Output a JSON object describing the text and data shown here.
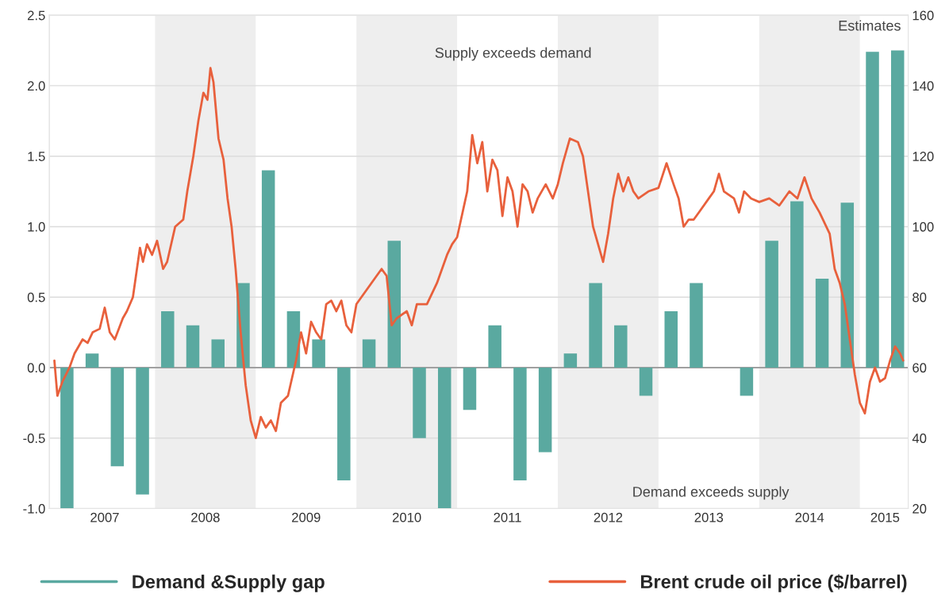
{
  "chart_data": {
    "type": "bar",
    "xlim": [
      2006.95,
      2015.48
    ],
    "xticks": [
      {
        "value": 2007.5,
        "label": "2007"
      },
      {
        "value": 2008.5,
        "label": "2008"
      },
      {
        "value": 2009.5,
        "label": "2009"
      },
      {
        "value": 2010.5,
        "label": "2010"
      },
      {
        "value": 2011.5,
        "label": "2011"
      },
      {
        "value": 2012.5,
        "label": "2012"
      },
      {
        "value": 2013.5,
        "label": "2013"
      },
      {
        "value": 2014.5,
        "label": "2014"
      },
      {
        "value": 2015.25,
        "label": "2015"
      }
    ],
    "ylim": [
      -1,
      2.5
    ],
    "yticks": [
      {
        "value": -1,
        "label": "-1.0"
      },
      {
        "value": -0.5,
        "label": "-0.5"
      },
      {
        "value": 0,
        "label": "0.0"
      },
      {
        "value": 0.5,
        "label": "0.5"
      },
      {
        "value": 1,
        "label": "1.0"
      },
      {
        "value": 1.5,
        "label": "1.5"
      },
      {
        "value": 2,
        "label": "2.0"
      },
      {
        "value": 2.5,
        "label": "2.5"
      }
    ],
    "y2lim": [
      20,
      160
    ],
    "y2ticks": [
      20,
      40,
      60,
      80,
      100,
      120,
      140,
      160
    ],
    "grid": "y",
    "legend": "bottom",
    "ref_lines": [
      {
        "axis": "y",
        "value": 0,
        "color": "#a0a0a0"
      }
    ],
    "bands": [
      {
        "axis": "x",
        "from": 2008,
        "to": 2009,
        "color": "#eeeeee"
      },
      {
        "axis": "x",
        "from": 2010,
        "to": 2011,
        "color": "#eeeeee"
      },
      {
        "axis": "x",
        "from": 2012,
        "to": 2013,
        "color": "#eeeeee"
      },
      {
        "axis": "x",
        "from": 2014,
        "to": 2015,
        "color": "#eeeeee"
      }
    ],
    "annotations": [
      "Supply exceeds demand",
      "Demand exceeds supply",
      "Estimates"
    ],
    "series": [
      {
        "name": "Demand &Supply gap",
        "color": "#5aa9a0",
        "x": [
          2007.125,
          2007.375,
          2007.625,
          2007.875,
          2008.125,
          2008.375,
          2008.625,
          2008.875,
          2009.125,
          2009.375,
          2009.625,
          2009.875,
          2010.125,
          2010.375,
          2010.625,
          2010.875,
          2011.125,
          2011.375,
          2011.625,
          2011.875,
          2012.125,
          2012.375,
          2012.625,
          2012.875,
          2013.125,
          2013.375,
          2013.625,
          2013.875,
          2014.125,
          2014.375,
          2014.625,
          2014.875,
          2015.125,
          2015.375
        ],
        "values": [
          -1.0,
          0.1,
          -0.7,
          -0.9,
          0.4,
          0.3,
          0.2,
          0.6,
          1.4,
          0.4,
          0.2,
          -0.8,
          0.2,
          0.9,
          -0.5,
          -1.0,
          -0.3,
          0.3,
          -0.8,
          -0.6,
          0.1,
          0.6,
          0.3,
          -0.2,
          0.4,
          0.6,
          null,
          -0.2,
          0.9,
          1.18,
          0.63,
          1.17,
          2.24,
          2.25
        ]
      },
      {
        "name": "Brent crude oil price ($/barrel)",
        "type": "line",
        "axis": "y2",
        "color": "#e8603c",
        "x": [
          2007.0,
          2007.03,
          2007.08,
          2007.15,
          2007.2,
          2007.28,
          2007.33,
          2007.38,
          2007.45,
          2007.5,
          2007.55,
          2007.6,
          2007.68,
          2007.72,
          2007.78,
          2007.85,
          2007.88,
          2007.92,
          2007.97,
          2008.02,
          2008.08,
          2008.12,
          2008.2,
          2008.28,
          2008.32,
          2008.38,
          2008.43,
          2008.48,
          2008.52,
          2008.55,
          2008.58,
          2008.63,
          2008.68,
          2008.72,
          2008.76,
          2008.8,
          2008.85,
          2008.9,
          2008.95,
          2009.0,
          2009.05,
          2009.1,
          2009.15,
          2009.2,
          2009.25,
          2009.32,
          2009.4,
          2009.45,
          2009.5,
          2009.55,
          2009.6,
          2009.65,
          2009.7,
          2009.75,
          2009.8,
          2009.85,
          2009.9,
          2009.95,
          2010.0,
          2010.1,
          2010.2,
          2010.25,
          2010.3,
          2010.35,
          2010.4,
          2010.5,
          2010.55,
          2010.6,
          2010.7,
          2010.8,
          2010.9,
          2010.95,
          2011.0,
          2011.1,
          2011.15,
          2011.2,
          2011.25,
          2011.3,
          2011.35,
          2011.4,
          2011.45,
          2011.5,
          2011.55,
          2011.6,
          2011.65,
          2011.7,
          2011.75,
          2011.8,
          2011.88,
          2011.95,
          2012.0,
          2012.05,
          2012.12,
          2012.2,
          2012.25,
          2012.3,
          2012.35,
          2012.4,
          2012.45,
          2012.5,
          2012.55,
          2012.6,
          2012.65,
          2012.7,
          2012.75,
          2012.8,
          2012.9,
          2013.0,
          2013.08,
          2013.15,
          2013.2,
          2013.25,
          2013.3,
          2013.35,
          2013.4,
          2013.5,
          2013.55,
          2013.6,
          2013.65,
          2013.75,
          2013.8,
          2013.85,
          2013.92,
          2014.0,
          2014.1,
          2014.2,
          2014.3,
          2014.38,
          2014.45,
          2014.52,
          2014.6,
          2014.7,
          2014.75,
          2014.8,
          2014.85,
          2014.9,
          2014.95,
          2015.0,
          2015.05,
          2015.1,
          2015.15,
          2015.2,
          2015.25,
          2015.3,
          2015.35,
          2015.4,
          2015.43
        ],
        "values": [
          62,
          52,
          56,
          60,
          64,
          68,
          67,
          70,
          71,
          77,
          70,
          68,
          74,
          76,
          80,
          94,
          90,
          95,
          92,
          96,
          88,
          90,
          100,
          102,
          110,
          120,
          130,
          138,
          136,
          145,
          141,
          125,
          119,
          108,
          100,
          88,
          70,
          55,
          45,
          40,
          46,
          43,
          45,
          42,
          50,
          52,
          62,
          70,
          64,
          73,
          70,
          68,
          78,
          79,
          76,
          79,
          72,
          70,
          78,
          82,
          86,
          88,
          86,
          72,
          74,
          76,
          72,
          78,
          78,
          84,
          92,
          95,
          97,
          110,
          126,
          118,
          124,
          110,
          119,
          116,
          103,
          114,
          110,
          100,
          112,
          110,
          104,
          108,
          112,
          108,
          112,
          118,
          125,
          124,
          120,
          110,
          100,
          95,
          90,
          98,
          108,
          115,
          110,
          114,
          110,
          108,
          110,
          111,
          118,
          112,
          108,
          100,
          102,
          102,
          104,
          108,
          110,
          115,
          110,
          108,
          104,
          110,
          108,
          107,
          108,
          106,
          110,
          108,
          114,
          108,
          104,
          98,
          88,
          84,
          78,
          68,
          58,
          50,
          47,
          56,
          60,
          56,
          57,
          62,
          66,
          64,
          62
        ]
      }
    ]
  }
}
